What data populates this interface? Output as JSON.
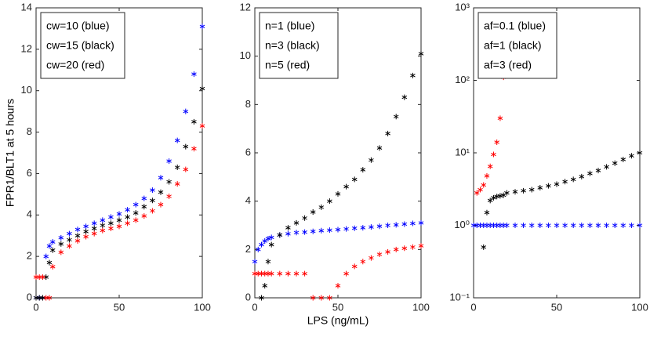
{
  "chart_data": [
    {
      "type": "scatter",
      "ylabel": "FPR1/BLT1 at  5 hours",
      "x": [
        0,
        2,
        4,
        6,
        8,
        10,
        15,
        20,
        25,
        30,
        35,
        40,
        45,
        50,
        55,
        60,
        65,
        70,
        75,
        80,
        85,
        90,
        95,
        100
      ],
      "xlim": [
        0,
        100
      ],
      "xticks": [
        0,
        50,
        100
      ],
      "ylim": [
        0,
        14
      ],
      "yticks": [
        0,
        2,
        4,
        6,
        8,
        10,
        12,
        14
      ],
      "series": [
        {
          "name": "cw=10 (blue)",
          "color": "#0000ff",
          "values": [
            0,
            0,
            0,
            2,
            2.5,
            2.7,
            2.9,
            3.1,
            3.3,
            3.45,
            3.6,
            3.75,
            3.9,
            4.05,
            4.25,
            4.5,
            4.8,
            5.2,
            5.8,
            6.6,
            7.6,
            9,
            10.8,
            13.1
          ]
        },
        {
          "name": "cw=15 (black)",
          "color": "#000000",
          "values": [
            0,
            0,
            0,
            1,
            1.7,
            2.3,
            2.6,
            2.8,
            3.0,
            3.2,
            3.35,
            3.5,
            3.6,
            3.75,
            3.9,
            4.1,
            4.4,
            4.7,
            5.1,
            5.6,
            6.3,
            7.3,
            8.5,
            10.1
          ]
        },
        {
          "name": "cw=20 (red)",
          "color": "#ff0000",
          "values": [
            1,
            1,
            1,
            0,
            0,
            1.5,
            2.2,
            2.5,
            2.75,
            2.95,
            3.1,
            3.25,
            3.35,
            3.45,
            3.6,
            3.75,
            3.95,
            4.2,
            4.5,
            4.9,
            5.5,
            6.2,
            7.2,
            8.3
          ]
        }
      ]
    },
    {
      "type": "scatter",
      "xlabel": "LPS (ng/mL)",
      "x": [
        0,
        2,
        4,
        6,
        8,
        10,
        15,
        20,
        25,
        30,
        35,
        40,
        45,
        50,
        55,
        60,
        65,
        70,
        75,
        80,
        85,
        90,
        95,
        100
      ],
      "xlim": [
        0,
        100
      ],
      "xticks": [
        0,
        50,
        100
      ],
      "ylim": [
        0,
        12
      ],
      "yticks": [
        0,
        2,
        4,
        6,
        8,
        10,
        12
      ],
      "series": [
        {
          "name": "n=1 (blue)",
          "color": "#0000ff",
          "values": [
            1.5,
            2,
            2.2,
            2.35,
            2.45,
            2.5,
            2.6,
            2.65,
            2.7,
            2.72,
            2.75,
            2.78,
            2.8,
            2.82,
            2.85,
            2.88,
            2.9,
            2.93,
            2.96,
            3.0,
            3.02,
            3.05,
            3.08,
            3.1
          ]
        },
        {
          "name": "n=3 (black)",
          "color": "#000000",
          "values": [
            null,
            null,
            0,
            0.5,
            1.5,
            2.2,
            2.6,
            2.9,
            3.1,
            3.3,
            3.55,
            3.75,
            4.0,
            4.3,
            4.6,
            4.9,
            5.3,
            5.7,
            6.2,
            6.8,
            7.5,
            8.3,
            9.2,
            10.1
          ]
        },
        {
          "name": "n=5 (red)",
          "color": "#ff0000",
          "values": [
            1,
            1,
            1,
            1,
            1,
            1,
            1,
            1,
            1,
            1,
            0,
            0,
            0,
            0.5,
            1.0,
            1.3,
            1.5,
            1.65,
            1.8,
            1.9,
            2.0,
            2.05,
            2.1,
            2.15
          ]
        }
      ]
    },
    {
      "type": "scatter",
      "log_y": true,
      "x": [
        0,
        2,
        4,
        6,
        8,
        10,
        12,
        14,
        16,
        18,
        20,
        25,
        30,
        35,
        40,
        45,
        50,
        55,
        60,
        65,
        70,
        75,
        80,
        85,
        90,
        95,
        100
      ],
      "xlim": [
        0,
        100
      ],
      "xticks": [
        0,
        50,
        100
      ],
      "ylim": [
        0.1,
        1000
      ],
      "yticks": [
        {
          "value": 0.1,
          "label": "10⁻¹"
        },
        {
          "value": 1,
          "label": "10⁰"
        },
        {
          "value": 10,
          "label": "10¹"
        },
        {
          "value": 100,
          "label": "10²"
        },
        {
          "value": 1000,
          "label": "10³"
        }
      ],
      "series": [
        {
          "name": "af=0.1 (blue)",
          "color": "#0000ff",
          "values": [
            1,
            1,
            1,
            1,
            1,
            1,
            1,
            1,
            1,
            1,
            1,
            1,
            1,
            1,
            1,
            1,
            1,
            1,
            1,
            1,
            1,
            1,
            1,
            1,
            1,
            1,
            1
          ]
        },
        {
          "name": "af=1 (black)",
          "color": "#000000",
          "values": [
            null,
            null,
            null,
            0.5,
            1.5,
            2.2,
            2.4,
            2.5,
            2.55,
            2.6,
            2.8,
            2.9,
            3.0,
            3.1,
            3.3,
            3.5,
            3.7,
            4.0,
            4.3,
            4.7,
            5.2,
            5.7,
            6.4,
            7.2,
            8.1,
            9.1,
            10
          ]
        },
        {
          "name": "af=3 (red)",
          "color": "#ff0000",
          "values": [
            null,
            2.8,
            3.1,
            3.6,
            4.8,
            6.5,
            9.5,
            14,
            30,
            110,
            null,
            null,
            null,
            null,
            null,
            null,
            null,
            null,
            null,
            null,
            null,
            null,
            null,
            null,
            null,
            null,
            null
          ]
        }
      ]
    }
  ]
}
